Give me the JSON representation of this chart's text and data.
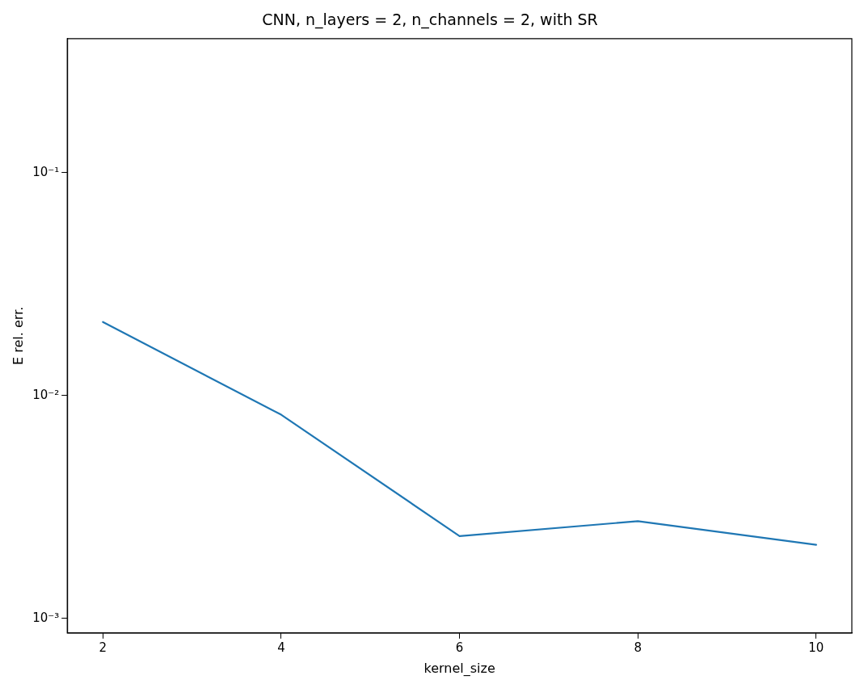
{
  "chart_data": {
    "type": "line",
    "title": "CNN, n_layers = 2, n_channels = 2, with SR",
    "xlabel": "kernel_size",
    "ylabel": "E rel. err.",
    "x": [
      2,
      4,
      6,
      8,
      10
    ],
    "series": [
      {
        "color": "#1f77b4",
        "values": [
          0.0214,
          0.0082,
          0.00234,
          0.00273,
          0.00214
        ]
      }
    ],
    "xlim": [
      1.6,
      10.4
    ],
    "xticks": [
      2,
      4,
      6,
      8,
      10
    ],
    "ylim": [
      0.00086,
      0.4
    ],
    "yticks": [
      {
        "value": 0.001,
        "label": "10⁻³"
      },
      {
        "value": 0.01,
        "label": "10⁻²"
      },
      {
        "value": 0.1,
        "label": "10⁻¹"
      }
    ],
    "log": "y",
    "grid": false,
    "legend": false,
    "marker": "none",
    "line_style": "solid"
  }
}
